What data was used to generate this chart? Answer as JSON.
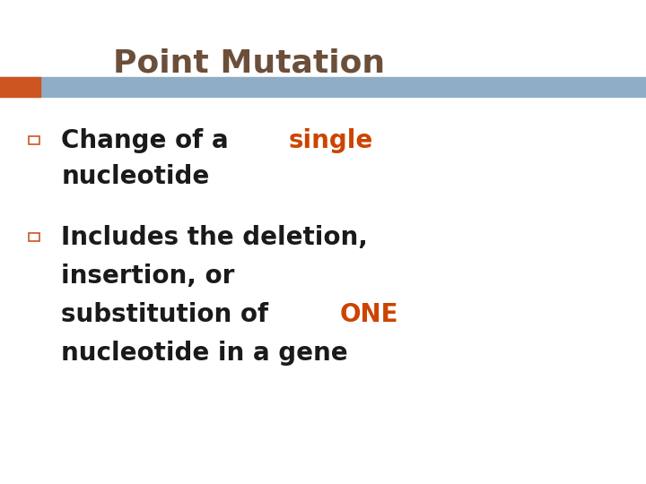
{
  "title": "Point Mutation",
  "title_color": "#6B4F3A",
  "title_fontsize": 26,
  "background_color": "#FFFFFF",
  "header_bar_color": "#8FAEC5",
  "accent_rect_color": "#CC5522",
  "bullet_outline_color": "#CC5522",
  "text_color": "#1A1A1A",
  "highlight_color": "#CC4400",
  "body_fontsize": 20,
  "highlight_fontsize": 20,
  "line1_normal": "Change of a ",
  "line1_highlight": "single",
  "line2": "nucleotide",
  "line3": "Includes the deletion,",
  "line4": "insertion, or",
  "line5_normal": "substitution of ",
  "line5_highlight": "ONE",
  "line6": "nucleotide in a gene"
}
